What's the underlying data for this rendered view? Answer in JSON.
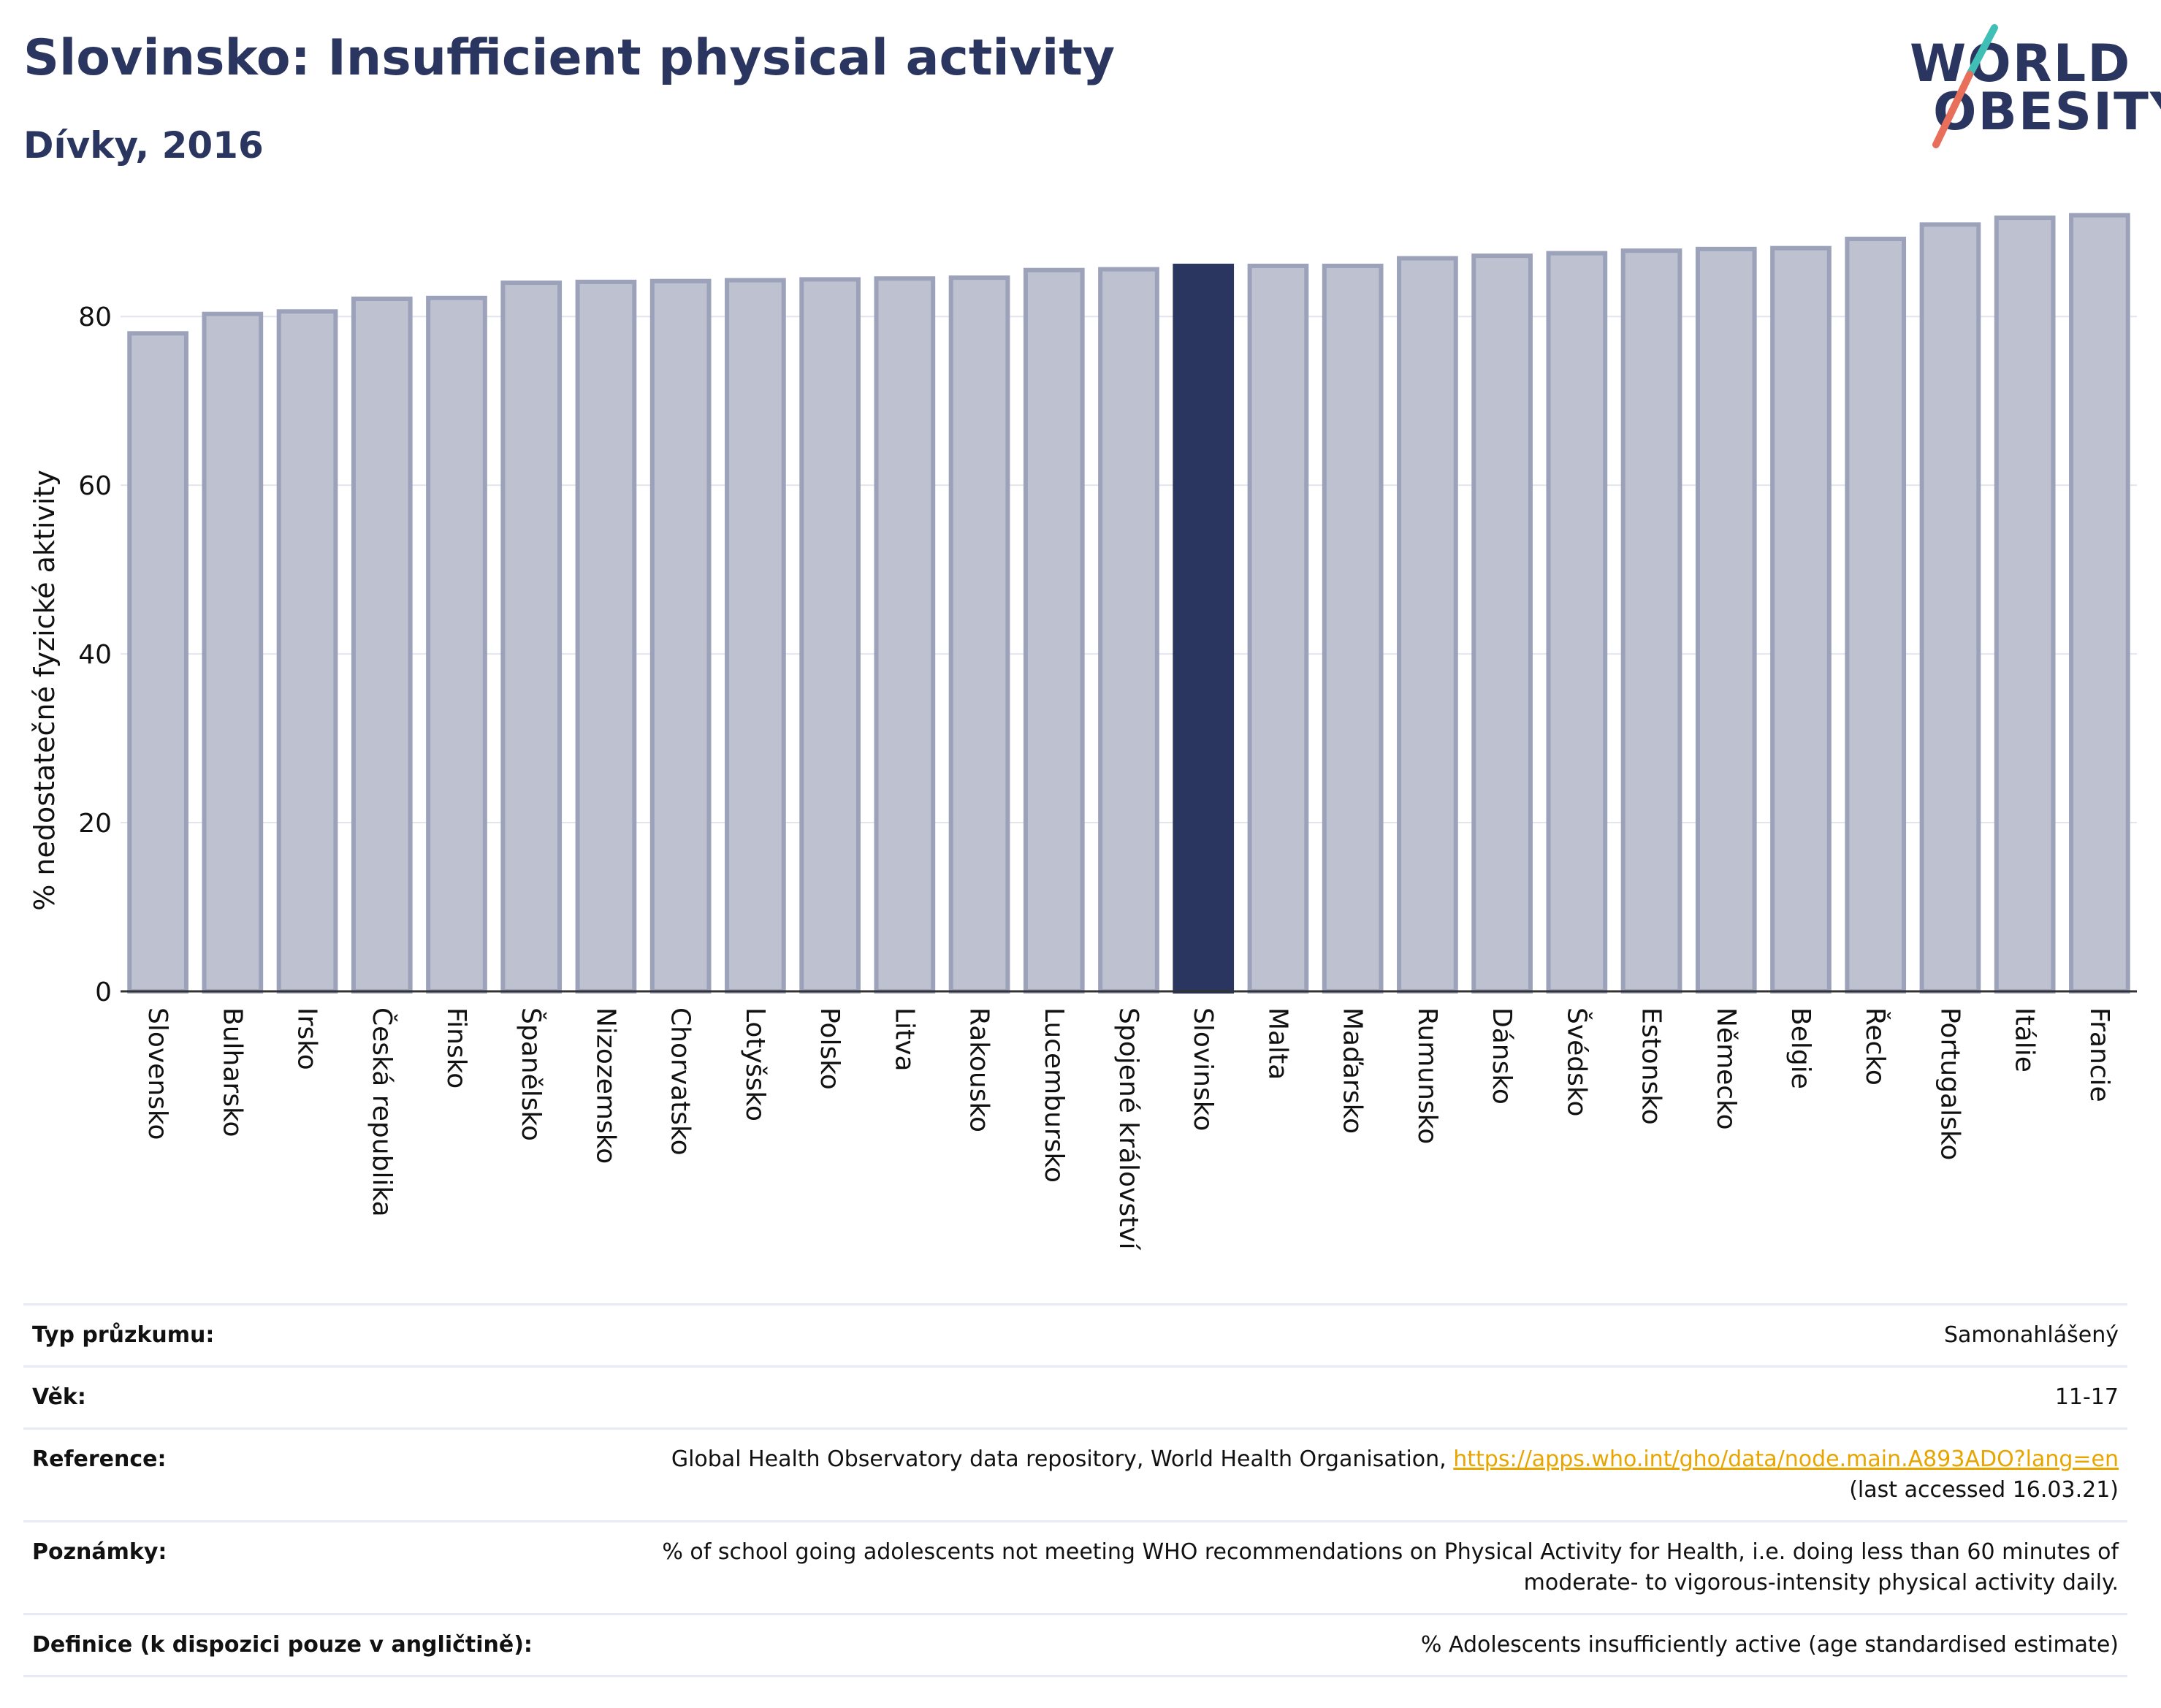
{
  "header": {
    "title": "Slovinsko: Insufficient physical activity",
    "subtitle": "Dívky, 2016"
  },
  "logo": {
    "line1": "WORLD",
    "line2": "OBESITY",
    "slash_colors": [
      "#3fbfb5",
      "#e8705a"
    ]
  },
  "colors": {
    "bar": "#bec1cf",
    "bar_border": "#9ba2ba",
    "highlight": "#2a3560",
    "axis": "#333333",
    "grid": "#e3e5ee",
    "link": "#e8a500"
  },
  "chart_data": {
    "type": "bar",
    "ylabel": "% nedostatečné fyzické aktivity",
    "ylim": [
      0,
      95
    ],
    "yticks": [
      0,
      20,
      40,
      60,
      80
    ],
    "grid": true,
    "highlight": "Slovinsko",
    "categories": [
      "Slovensko",
      "Bulharsko",
      "Irsko",
      "Česká republika",
      "Finsko",
      "Španělsko",
      "Nizozemsko",
      "Chorvatsko",
      "Lotyšsko",
      "Polsko",
      "Litva",
      "Rakousko",
      "Lucembursko",
      "Spojené království",
      "Slovinsko",
      "Malta",
      "Maďarsko",
      "Rumunsko",
      "Dánsko",
      "Švédsko",
      "Estonsko",
      "Německo",
      "Belgie",
      "Řecko",
      "Portugalsko",
      "Itálie",
      "Francie"
    ],
    "values": [
      78.0,
      80.3,
      80.6,
      82.1,
      82.2,
      84.0,
      84.1,
      84.2,
      84.3,
      84.4,
      84.5,
      84.6,
      85.5,
      85.6,
      86.0,
      86.0,
      86.0,
      86.9,
      87.2,
      87.5,
      87.8,
      88.0,
      88.1,
      89.2,
      90.9,
      91.7,
      92.0
    ]
  },
  "info": {
    "rows": [
      {
        "label": "Typ průzkumu:",
        "value": "Samonahlášený"
      },
      {
        "label": "Věk:",
        "value": "11-17"
      },
      {
        "label": "Reference:",
        "value": "Global Health Observatory data repository, World Health Organisation,",
        "link": "https://apps.who.int/gho/data/node.main.A893ADO?lang=en",
        "value2": "(last accessed 16.03.21)"
      },
      {
        "label": "Poznámky:",
        "value": "% of school going adolescents not meeting WHO recommendations on Physical Activity for Health, i.e. doing less than 60 minutes of",
        "value2": "moderate- to vigorous-intensity physical activity daily."
      },
      {
        "label": "Definice (k dispozici pouze v angličtině):",
        "value": "% Adolescents insufficiently active (age standardised estimate)"
      }
    ]
  }
}
